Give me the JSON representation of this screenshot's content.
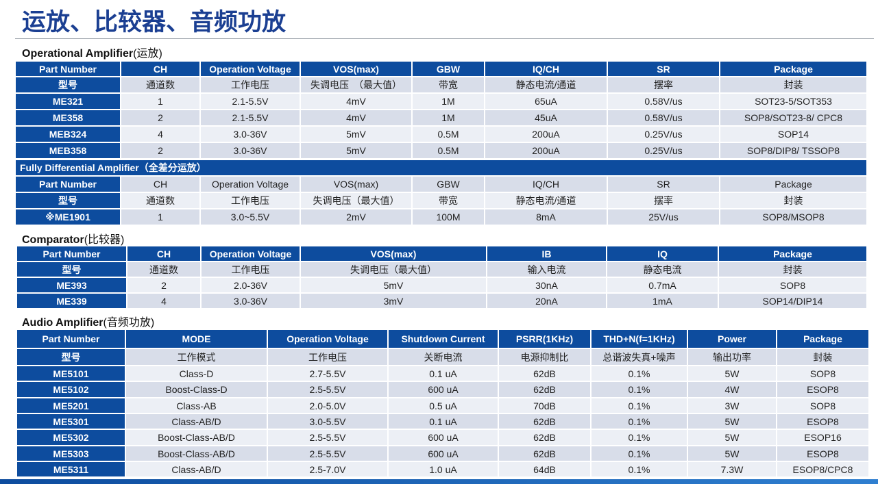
{
  "title": "运放、比较器、音频功放",
  "sections": [
    {
      "heading": "Operational Amplifier",
      "heading_note": "(运放)",
      "table": {
        "header": [
          "Part Number",
          "CH",
          "Operation Voltage",
          "VOS(max)",
          "GBW",
          "IQ/CH",
          "SR",
          "Package"
        ],
        "rows": [
          [
            "型号",
            "通道数",
            "工作电压",
            "失调电压　（最大值）",
            "带宽",
            "静态电流/通道",
            "摆率",
            "封装"
          ],
          [
            "ME321",
            "1",
            "2.1-5.5V",
            "4mV",
            "1M",
            "65uA",
            "0.58V/us",
            "SOT23-5/SOT353"
          ],
          [
            "ME358",
            "2",
            "2.1-5.5V",
            "4mV",
            "1M",
            "45uA",
            "0.58V/us",
            "SOP8/SOT23-8/ CPC8"
          ],
          [
            "MEB324",
            "4",
            "3.0-36V",
            "5mV",
            "0.5M",
            "200uA",
            "0.25V/us",
            "SOP14"
          ],
          [
            "MEB358",
            "2",
            "3.0-36V",
            "5mV",
            "0.5M",
            "200uA",
            "0.25V/us",
            "SOP8/DIP8/ TSSOP8"
          ]
        ]
      }
    },
    {
      "heading": "Fully Differential Amplifier（全差分运放）",
      "table": {
        "rows": [
          [
            "Part Number",
            "CH",
            "Operation Voltage",
            "VOS(max)",
            "GBW",
            "IQ/CH",
            "SR",
            "Package"
          ],
          [
            "型号",
            "通道数",
            "工作电压",
            "失调电压（最大值）",
            "带宽",
            "静态电流/通道",
            "摆率",
            "封装"
          ],
          [
            "※ME1901",
            "1",
            "3.0~5.5V",
            "2mV",
            "100M",
            "8mA",
            "25V/us",
            "SOP8/MSOP8"
          ]
        ]
      }
    },
    {
      "heading": "Comparator",
      "heading_note": "(比较器)",
      "table": {
        "header": [
          "Part Number",
          "CH",
          "Operation Voltage",
          "VOS(max)",
          "IB",
          "IQ",
          "Package"
        ],
        "rows": [
          [
            "型号",
            "通道数",
            "工作电压",
            "失调电压（最大值）",
            "输入电流",
            "静态电流",
            "封装"
          ],
          [
            "ME393",
            "2",
            "2.0-36V",
            "5mV",
            "30nA",
            "0.7mA",
            "SOP8"
          ],
          [
            "ME339",
            "4",
            "3.0-36V",
            "3mV",
            "20nA",
            "1mA",
            "SOP14/DIP14"
          ]
        ]
      }
    },
    {
      "heading": "Audio Amplifier",
      "heading_note": "(音频功放)",
      "table": {
        "header": [
          "Part Number",
          "MODE",
          "Operation Voltage",
          "Shutdown Current",
          "PSRR(1KHz)",
          "THD+N(f=1KHz)",
          "Power",
          "Package"
        ],
        "rows": [
          [
            "型号",
            "工作模式",
            "工作电压",
            "关断电流",
            "电源抑制比",
            "总谐波失真+噪声",
            "输出功率",
            "封装"
          ],
          [
            "ME5101",
            "Class-D",
            "2.7-5.5V",
            "0.1 uA",
            "62dB",
            "0.1%",
            "5W",
            "SOP8"
          ],
          [
            "ME5102",
            "Boost-Class-D",
            "2.5-5.5V",
            "600 uA",
            "62dB",
            "0.1%",
            "4W",
            "ESOP8"
          ],
          [
            "ME5201",
            "Class-AB",
            "2.0-5.0V",
            "0.5 uA",
            "70dB",
            "0.1%",
            "3W",
            "SOP8"
          ],
          [
            "ME5301",
            "Class-AB/D",
            "3.0-5.5V",
            "0.1 uA",
            "62dB",
            "0.1%",
            "5W",
            "ESOP8"
          ],
          [
            "ME5302",
            "Boost-Class-AB/D",
            "2.5-5.5V",
            "600 uA",
            "62dB",
            "0.1%",
            "5W",
            "ESOP16"
          ],
          [
            "ME5303",
            "Boost-Class-AB/D",
            "2.5-5.5V",
            "600 uA",
            "62dB",
            "0.1%",
            "5W",
            "ESOP8"
          ],
          [
            "ME5311",
            "Class-AB/D",
            "2.5-7.0V",
            "1.0 uA",
            "64dB",
            "0.1%",
            "7.3W",
            "ESOP8/CPC8"
          ]
        ]
      }
    }
  ]
}
